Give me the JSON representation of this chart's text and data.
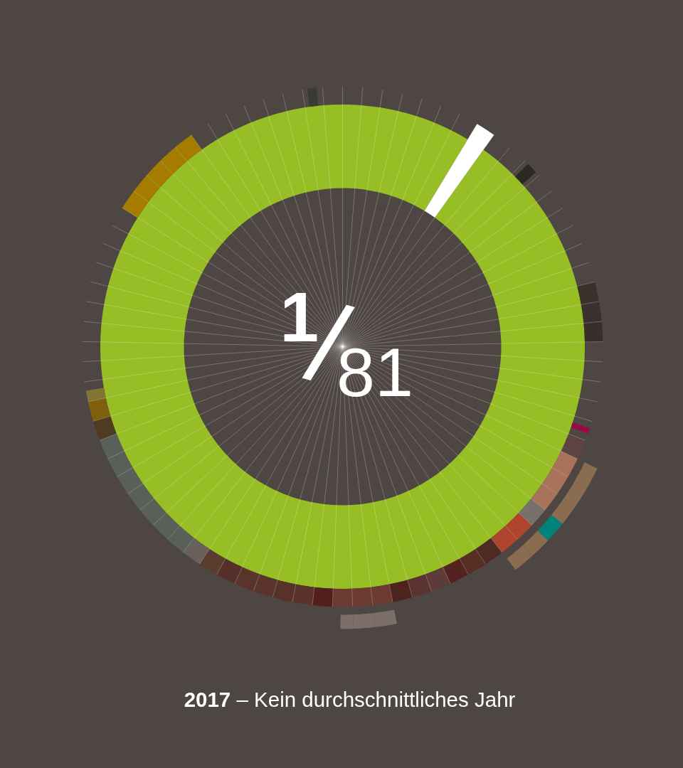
{
  "chart_data": {
    "type": "donut",
    "title": "2017 – Kein durchschnittliches Jahr",
    "annotations": [
      "1/81"
    ],
    "grid": true,
    "categories": [
      null,
      null
    ],
    "values": [
      1.2346,
      98.7654
    ],
    "colors": [
      "#ffffff",
      "#97be25"
    ]
  }
}
